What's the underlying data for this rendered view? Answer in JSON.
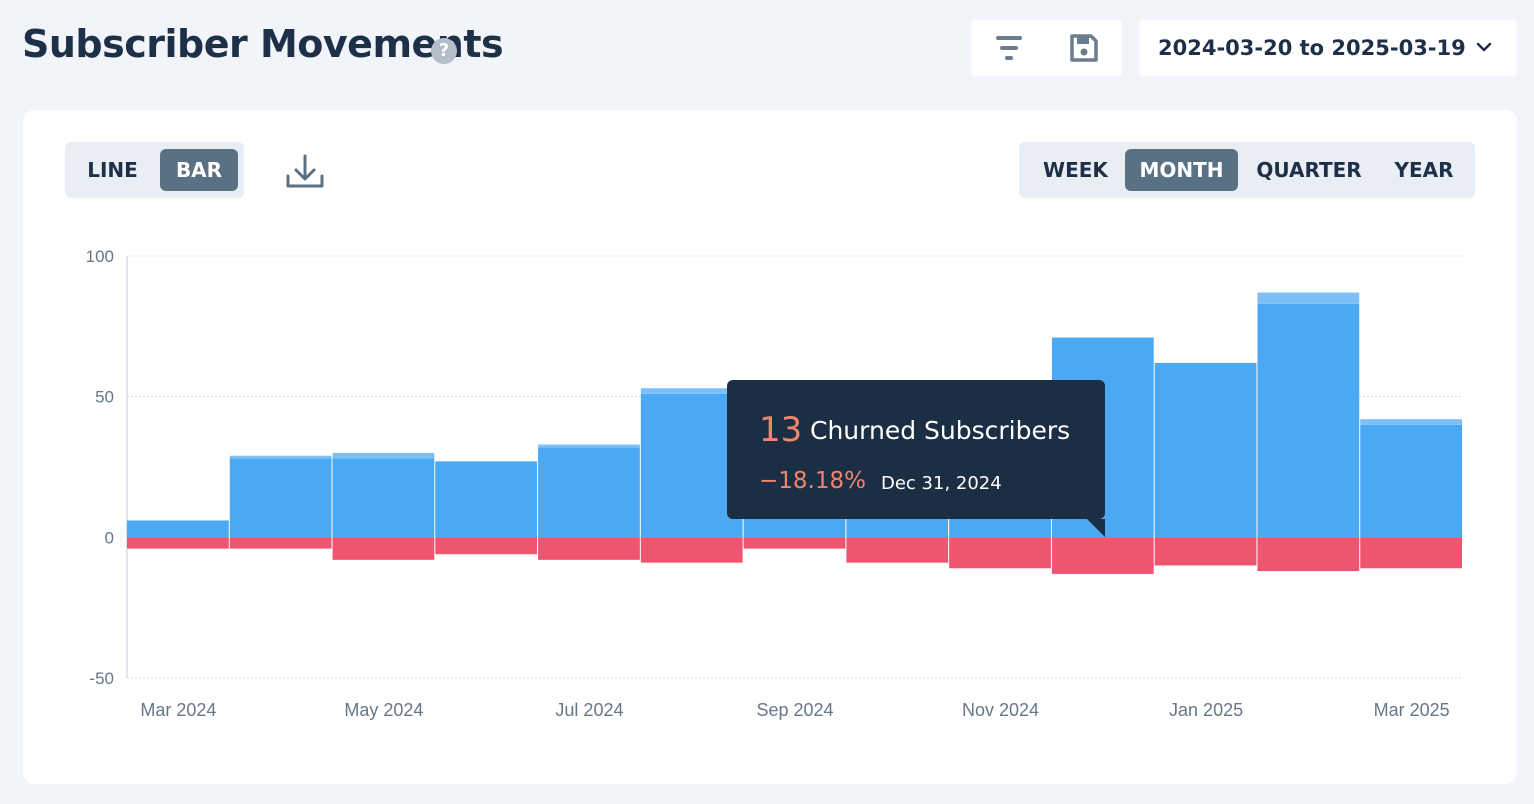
{
  "header": {
    "title": "Subscriber Movements",
    "help_icon": "question-circle-icon",
    "filter_icon": "filter-icon",
    "save_icon": "floppy-disk-icon",
    "date_range": "2024-03-20 to 2025-03-19",
    "dropdown_icon": "chevron-down-icon"
  },
  "toolbar": {
    "chart_types": [
      {
        "label": "LINE",
        "active": false
      },
      {
        "label": "BAR",
        "active": true
      }
    ],
    "download_icon": "download-icon",
    "periods": [
      {
        "label": "WEEK",
        "active": false
      },
      {
        "label": "MONTH",
        "active": true
      },
      {
        "label": "QUARTER",
        "active": false
      },
      {
        "label": "YEAR",
        "active": false
      }
    ]
  },
  "chart_data": {
    "type": "bar",
    "stacked": true,
    "x_tick_labels": [
      "Mar 2024",
      "May 2024",
      "Jul 2024",
      "Sep 2024",
      "Nov 2024",
      "Jan 2025",
      "Mar 2025"
    ],
    "ylim": [
      -50,
      100
    ],
    "y_ticks": [
      100,
      50,
      0,
      -50
    ],
    "grid": true,
    "legend": "none",
    "colors": {
      "new": "#4aa8f5",
      "reactivated": "#7dc0f7",
      "churned": "#ef5470",
      "axis_text": "#66778a",
      "grid": "#d8dee5"
    },
    "series": [
      {
        "key": "new",
        "values": [
          6,
          28,
          28,
          27,
          32,
          51,
          51,
          51,
          51,
          71,
          62,
          83,
          40
        ]
      },
      {
        "key": "reactivated",
        "values": [
          0,
          1,
          2,
          0,
          1,
          2,
          1,
          1,
          1,
          0,
          0,
          4,
          2
        ]
      },
      {
        "key": "churned",
        "values": [
          -4,
          -4,
          -8,
          -6,
          -8,
          -9,
          -4,
          -9,
          -11,
          -13,
          -10,
          -12,
          -11
        ]
      }
    ],
    "tooltip": {
      "count": "13",
      "label": "Churned Subscribers",
      "percent": "−18.18%",
      "date": "Dec 31, 2024"
    }
  }
}
